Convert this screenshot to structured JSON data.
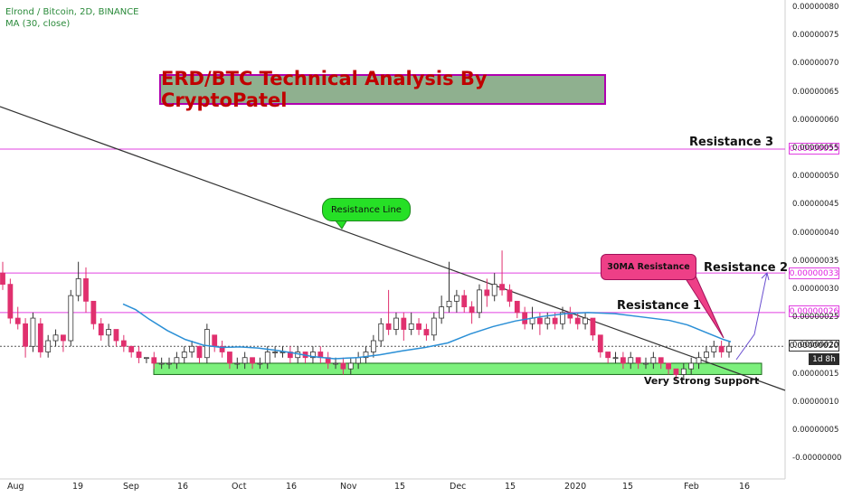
{
  "header": {
    "symbol_line": "Elrond / Bitcoin, 2D, BINANCE",
    "indicator_line": "MA (30, close)"
  },
  "annotations": {
    "title": "ERD/BTC Technical Analysis By CryptoPatel",
    "resistance_line": "Resistance Line",
    "ma_resistance": "30MA Resistance",
    "resistance_1": "Resistance 1",
    "resistance_2": "Resistance 2",
    "resistance_3": "Resistance 3",
    "support": "Very Strong Support"
  },
  "price_badges": {
    "r3": "0.00000055",
    "r2": "0.00000033",
    "r1": "0.00000026",
    "last": "0.00000020",
    "countdown": "1d 8h"
  },
  "colors": {
    "up": "#ffffff",
    "down": "#e0306e",
    "ma": "#2a8fd6",
    "resistance": "#e040e0",
    "support_fill": "#7cf07c",
    "trendline": "#333333",
    "projection": "#6a4fd0"
  },
  "chart_data": {
    "type": "candlestick",
    "title": "ERD/BTC Technical Analysis By CryptoPatel",
    "y_axis": {
      "ticks": [
        "0.00000080",
        "0.00000075",
        "0.00000070",
        "0.00000065",
        "0.00000060",
        "0.00000055",
        "0.00000050",
        "0.00000045",
        "0.00000040",
        "0.00000035",
        "0.00000030",
        "0.00000025",
        "0.00000020",
        "0.00000015",
        "0.00000010",
        "0.00000005",
        "-0.00000000"
      ],
      "scale": "1e-8 BTC",
      "range": [
        -0.5,
        80
      ]
    },
    "x_axis": {
      "ticks": [
        "Aug",
        "19",
        "Sep",
        "16",
        "Oct",
        "16",
        "Nov",
        "15",
        "Dec",
        "15",
        "2020",
        "15",
        "Feb",
        "16"
      ]
    },
    "horizontal_levels": [
      {
        "name": "Resistance 3",
        "value": 55
      },
      {
        "name": "Resistance 2",
        "value": 33
      },
      {
        "name": "Resistance 1",
        "value": 26
      },
      {
        "name": "Last price",
        "value": 20
      }
    ],
    "support_zone": [
      15,
      17
    ],
    "ohlc_units": "1e-8 BTC",
    "candles": [
      [
        33,
        35,
        30,
        31
      ],
      [
        31,
        32,
        24,
        25
      ],
      [
        25,
        27,
        23,
        24
      ],
      [
        24,
        25,
        18,
        20
      ],
      [
        20,
        26,
        19,
        25
      ],
      [
        24,
        25,
        18,
        19
      ],
      [
        19,
        22,
        18,
        21
      ],
      [
        21,
        23,
        20,
        22
      ],
      [
        22,
        22,
        19,
        21
      ],
      [
        21,
        30,
        20,
        29
      ],
      [
        29,
        35,
        28,
        32
      ],
      [
        32,
        34,
        26,
        28
      ],
      [
        28,
        28,
        23,
        24
      ],
      [
        24,
        25,
        21,
        22
      ],
      [
        22,
        24,
        20,
        23
      ],
      [
        23,
        23,
        20,
        21
      ],
      [
        21,
        22,
        19,
        20
      ],
      [
        20,
        20,
        18,
        19
      ],
      [
        19,
        20,
        17,
        18
      ],
      [
        18,
        18,
        17,
        18
      ],
      [
        18,
        19,
        16,
        17
      ],
      [
        17,
        18,
        16,
        17
      ],
      [
        17,
        18,
        16,
        17
      ],
      [
        17,
        19,
        16,
        18
      ],
      [
        18,
        20,
        17,
        19
      ],
      [
        19,
        21,
        18,
        20
      ],
      [
        20,
        20,
        17,
        18
      ],
      [
        18,
        24,
        17,
        23
      ],
      [
        22,
        22,
        19,
        20
      ],
      [
        20,
        21,
        18,
        19
      ],
      [
        19,
        19,
        16,
        17
      ],
      [
        17,
        18,
        16,
        17
      ],
      [
        17,
        19,
        16,
        18
      ],
      [
        18,
        18,
        16,
        17
      ],
      [
        17,
        18,
        16,
        17
      ],
      [
        17,
        20,
        16,
        19
      ],
      [
        19,
        20,
        18,
        19
      ],
      [
        19,
        20,
        18,
        19
      ],
      [
        19,
        20,
        17,
        18
      ],
      [
        18,
        20,
        17,
        19
      ],
      [
        19,
        19,
        17,
        18
      ],
      [
        18,
        20,
        17,
        19
      ],
      [
        19,
        20,
        17,
        18
      ],
      [
        18,
        19,
        16,
        17
      ],
      [
        17,
        18,
        16,
        17
      ],
      [
        17,
        18,
        15,
        16
      ],
      [
        16,
        18,
        15,
        17
      ],
      [
        17,
        19,
        16,
        18
      ],
      [
        18,
        20,
        17,
        19
      ],
      [
        19,
        22,
        18,
        21
      ],
      [
        21,
        25,
        20,
        24
      ],
      [
        24,
        30,
        22,
        23
      ],
      [
        23,
        26,
        22,
        25
      ],
      [
        25,
        26,
        21,
        23
      ],
      [
        23,
        26,
        22,
        24
      ],
      [
        24,
        25,
        22,
        23
      ],
      [
        23,
        24,
        21,
        22
      ],
      [
        22,
        26,
        21,
        25
      ],
      [
        25,
        29,
        24,
        27
      ],
      [
        27,
        35,
        26,
        28
      ],
      [
        28,
        30,
        26,
        29
      ],
      [
        29,
        30,
        26,
        27
      ],
      [
        27,
        28,
        24,
        26
      ],
      [
        26,
        31,
        25,
        30
      ],
      [
        30,
        32,
        27,
        29
      ],
      [
        29,
        33,
        28,
        31
      ],
      [
        31,
        37,
        29,
        30
      ],
      [
        30,
        31,
        27,
        28
      ],
      [
        28,
        28,
        25,
        26
      ],
      [
        26,
        27,
        23,
        24
      ],
      [
        24,
        27,
        23,
        25
      ],
      [
        25,
        26,
        22,
        24
      ],
      [
        24,
        26,
        23,
        25
      ],
      [
        25,
        26,
        23,
        24
      ],
      [
        24,
        27,
        23,
        26
      ],
      [
        26,
        27,
        24,
        25
      ],
      [
        25,
        26,
        23,
        24
      ],
      [
        24,
        26,
        23,
        25
      ],
      [
        25,
        25,
        21,
        22
      ],
      [
        22,
        22,
        18,
        19
      ],
      [
        19,
        19,
        17,
        18
      ],
      [
        18,
        19,
        17,
        18
      ],
      [
        18,
        19,
        16,
        17
      ],
      [
        17,
        19,
        16,
        18
      ],
      [
        18,
        18,
        16,
        17
      ],
      [
        17,
        18,
        16,
        17
      ],
      [
        17,
        19,
        16,
        18
      ],
      [
        18,
        18,
        16,
        17
      ],
      [
        17,
        17,
        15,
        16
      ],
      [
        16,
        16,
        14,
        15
      ],
      [
        15,
        17,
        14,
        16
      ],
      [
        16,
        18,
        15,
        17
      ],
      [
        17,
        19,
        16,
        18
      ],
      [
        18,
        20,
        17,
        19
      ],
      [
        19,
        21,
        18,
        20
      ],
      [
        20,
        21,
        18,
        19
      ],
      [
        19,
        21,
        18,
        20
      ]
    ],
    "ma30": [
      [
        136,
        27.5
      ],
      [
        150,
        26.5
      ],
      [
        165,
        24.8
      ],
      [
        185,
        22.8
      ],
      [
        205,
        21.2
      ],
      [
        225,
        20.2
      ],
      [
        245,
        19.8
      ],
      [
        265,
        19.9
      ],
      [
        285,
        19.7
      ],
      [
        305,
        19.3
      ],
      [
        325,
        18.8
      ],
      [
        345,
        18.2
      ],
      [
        370,
        17.8
      ],
      [
        395,
        18.0
      ],
      [
        420,
        18.5
      ],
      [
        445,
        19.2
      ],
      [
        470,
        19.8
      ],
      [
        495,
        20.6
      ],
      [
        520,
        22.2
      ],
      [
        545,
        23.5
      ],
      [
        570,
        24.5
      ],
      [
        600,
        25.3
      ],
      [
        625,
        25.8
      ],
      [
        650,
        26.0
      ],
      [
        680,
        25.8
      ],
      [
        710,
        25.2
      ],
      [
        740,
        24.6
      ],
      [
        760,
        23.8
      ],
      [
        780,
        22.5
      ],
      [
        800,
        21.2
      ],
      [
        808,
        20.8
      ]
    ]
  }
}
